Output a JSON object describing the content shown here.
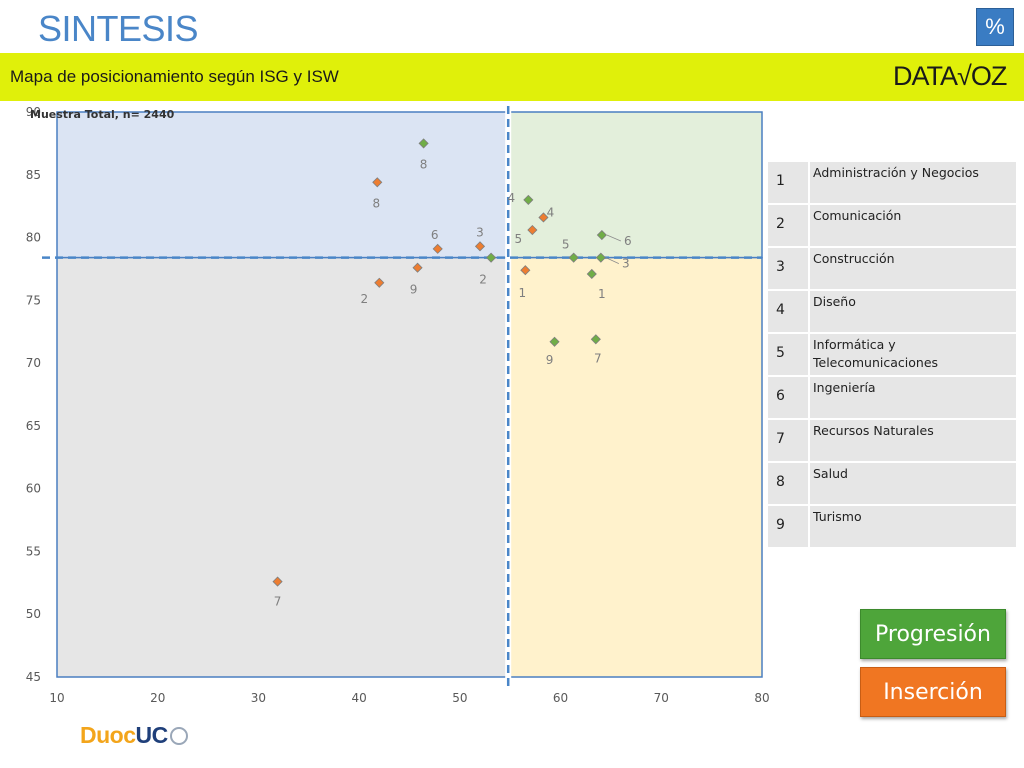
{
  "header": {
    "title": "SINTESIS",
    "percent_button": "%",
    "subtitle": "Mapa de posicionamiento según ISG y ISW",
    "brand": "DATA√OZ"
  },
  "chart_data": {
    "type": "scatter",
    "annotation": "Muestra Total, n= 2440",
    "xlim": [
      10,
      80
    ],
    "ylim": [
      45,
      90
    ],
    "x_ticks": [
      "10",
      "20",
      "30",
      "40",
      "50",
      "60",
      "70",
      "80"
    ],
    "y_ticks": [
      "45",
      "50",
      "55",
      "60",
      "65",
      "70",
      "75",
      "80",
      "85",
      "90"
    ],
    "reference_lines": {
      "x": 54.8,
      "y": 78.4
    },
    "quadrant_colors": {
      "top_left": "#dbe4f3",
      "top_right": "#e3efdb",
      "bottom_left": "#e6e6e6",
      "bottom_right": "#fff2cc"
    },
    "series": [
      {
        "color": "#ed7d31",
        "points": [
          {
            "label": "1",
            "x": 56.5,
            "y": 77.4
          },
          {
            "label": "2",
            "x": 42.0,
            "y": 76.4
          },
          {
            "label": "3",
            "x": 52.0,
            "y": 79.3
          },
          {
            "label": "4",
            "x": 58.3,
            "y": 81.6
          },
          {
            "label": "5",
            "x": 57.2,
            "y": 80.6
          },
          {
            "label": "6",
            "x": 47.8,
            "y": 79.1
          },
          {
            "label": "7",
            "x": 31.9,
            "y": 52.6
          },
          {
            "label": "8",
            "x": 41.8,
            "y": 84.4
          },
          {
            "label": "9",
            "x": 45.8,
            "y": 77.6
          }
        ]
      },
      {
        "color": "#70ad47",
        "points": [
          {
            "label": "1",
            "x": 63.1,
            "y": 77.1
          },
          {
            "label": "2",
            "x": 53.1,
            "y": 78.4
          },
          {
            "label": "3",
            "x": 64.0,
            "y": 78.4
          },
          {
            "label": "4",
            "x": 56.8,
            "y": 83.0
          },
          {
            "label": "5",
            "x": 61.3,
            "y": 78.4
          },
          {
            "label": "6",
            "x": 64.1,
            "y": 80.2
          },
          {
            "label": "7",
            "x": 63.5,
            "y": 71.9
          },
          {
            "label": "8",
            "x": 46.4,
            "y": 87.5
          },
          {
            "label": "9",
            "x": 59.4,
            "y": 71.7
          }
        ]
      }
    ]
  },
  "legend": [
    {
      "num": "1",
      "label": "Administración y Negocios"
    },
    {
      "num": "2",
      "label": "Comunicación"
    },
    {
      "num": "3",
      "label": "Construcción"
    },
    {
      "num": "4",
      "label": "Diseño"
    },
    {
      "num": "5",
      "label": "Informática y Telecomunicaciones"
    },
    {
      "num": "6",
      "label": "Ingeniería"
    },
    {
      "num": "7",
      "label": "Recursos Naturales"
    },
    {
      "num": "8",
      "label": "Salud"
    },
    {
      "num": "9",
      "label": "Turismo"
    }
  ],
  "buttons": {
    "progresion": "Progresión",
    "insercion": "Inserción"
  },
  "logo": {
    "duoc": "Duoc",
    "uc": "UC"
  }
}
